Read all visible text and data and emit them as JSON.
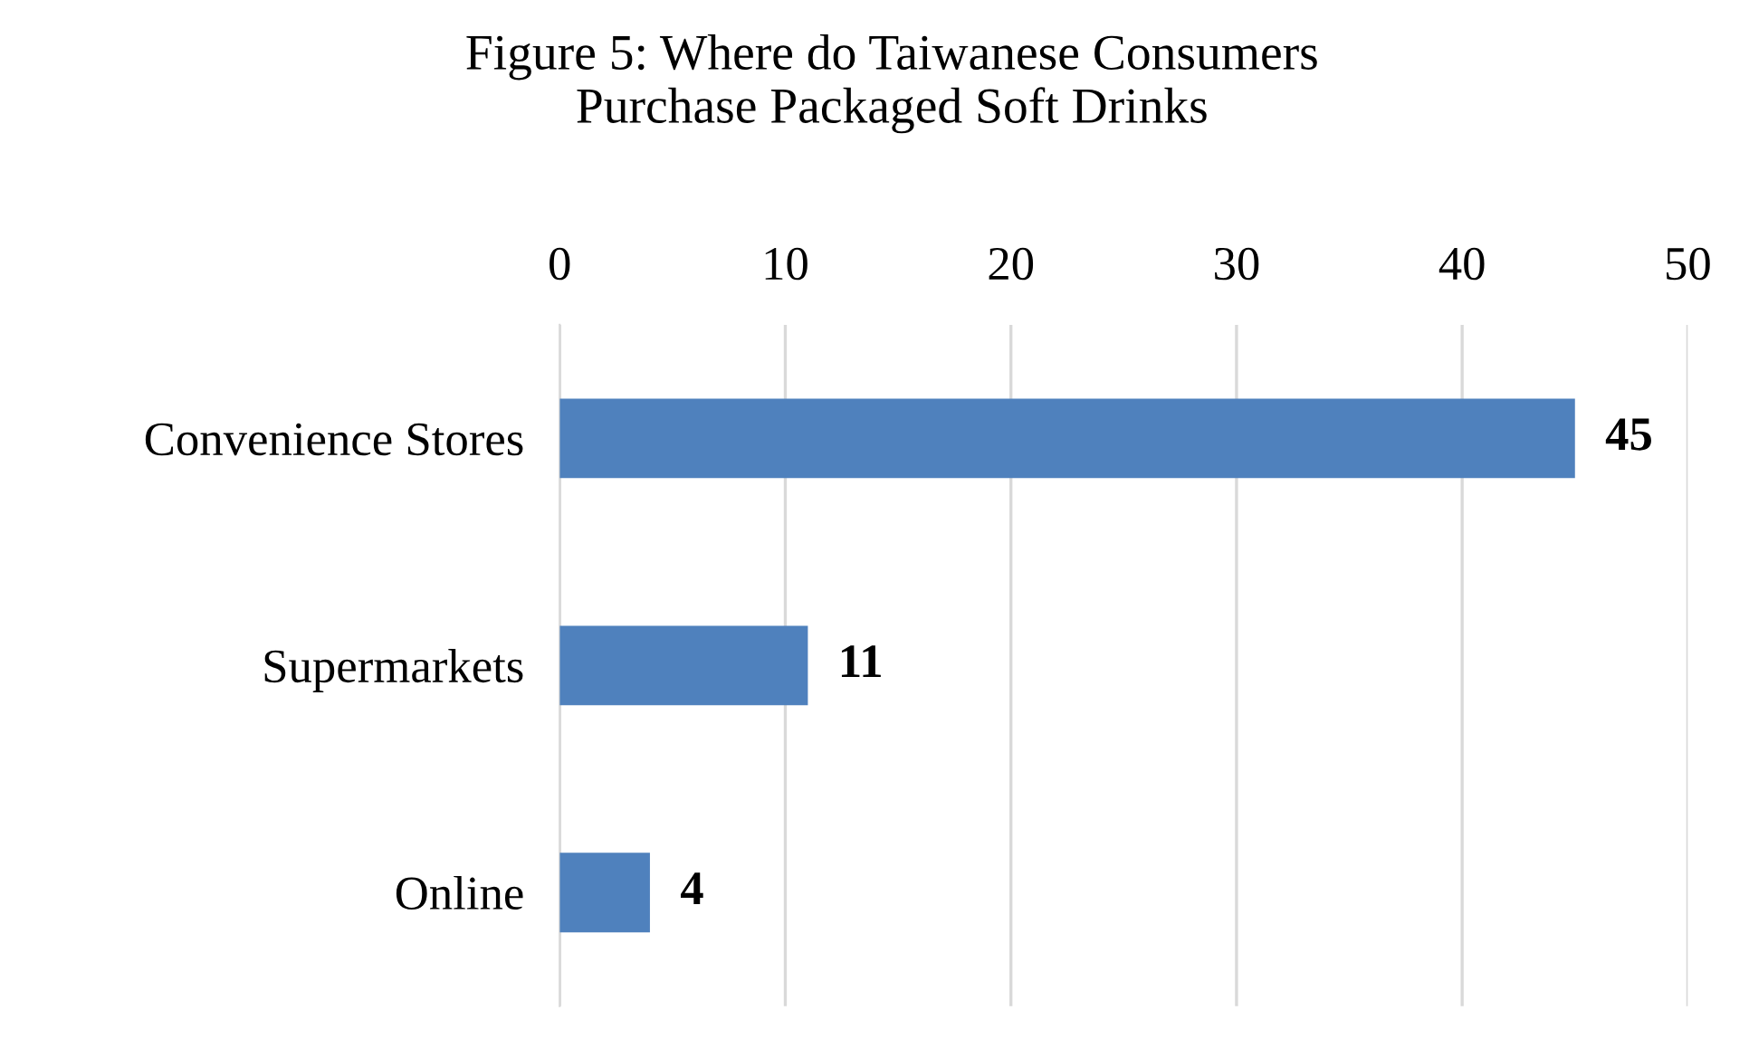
{
  "chart_data": {
    "type": "bar",
    "orientation": "horizontal",
    "title": "Figure 5: Where do Taiwanese Consumers\nPurchase Packaged Soft Drinks",
    "categories": [
      "Convenience Stores",
      "Supermarkets",
      "Online"
    ],
    "values": [
      45,
      11,
      4
    ],
    "color": "#4f81bd",
    "xlim": [
      0,
      50
    ],
    "xticks": [
      0,
      10,
      20,
      30,
      40,
      50
    ],
    "grid": "x",
    "data_labels": true
  }
}
